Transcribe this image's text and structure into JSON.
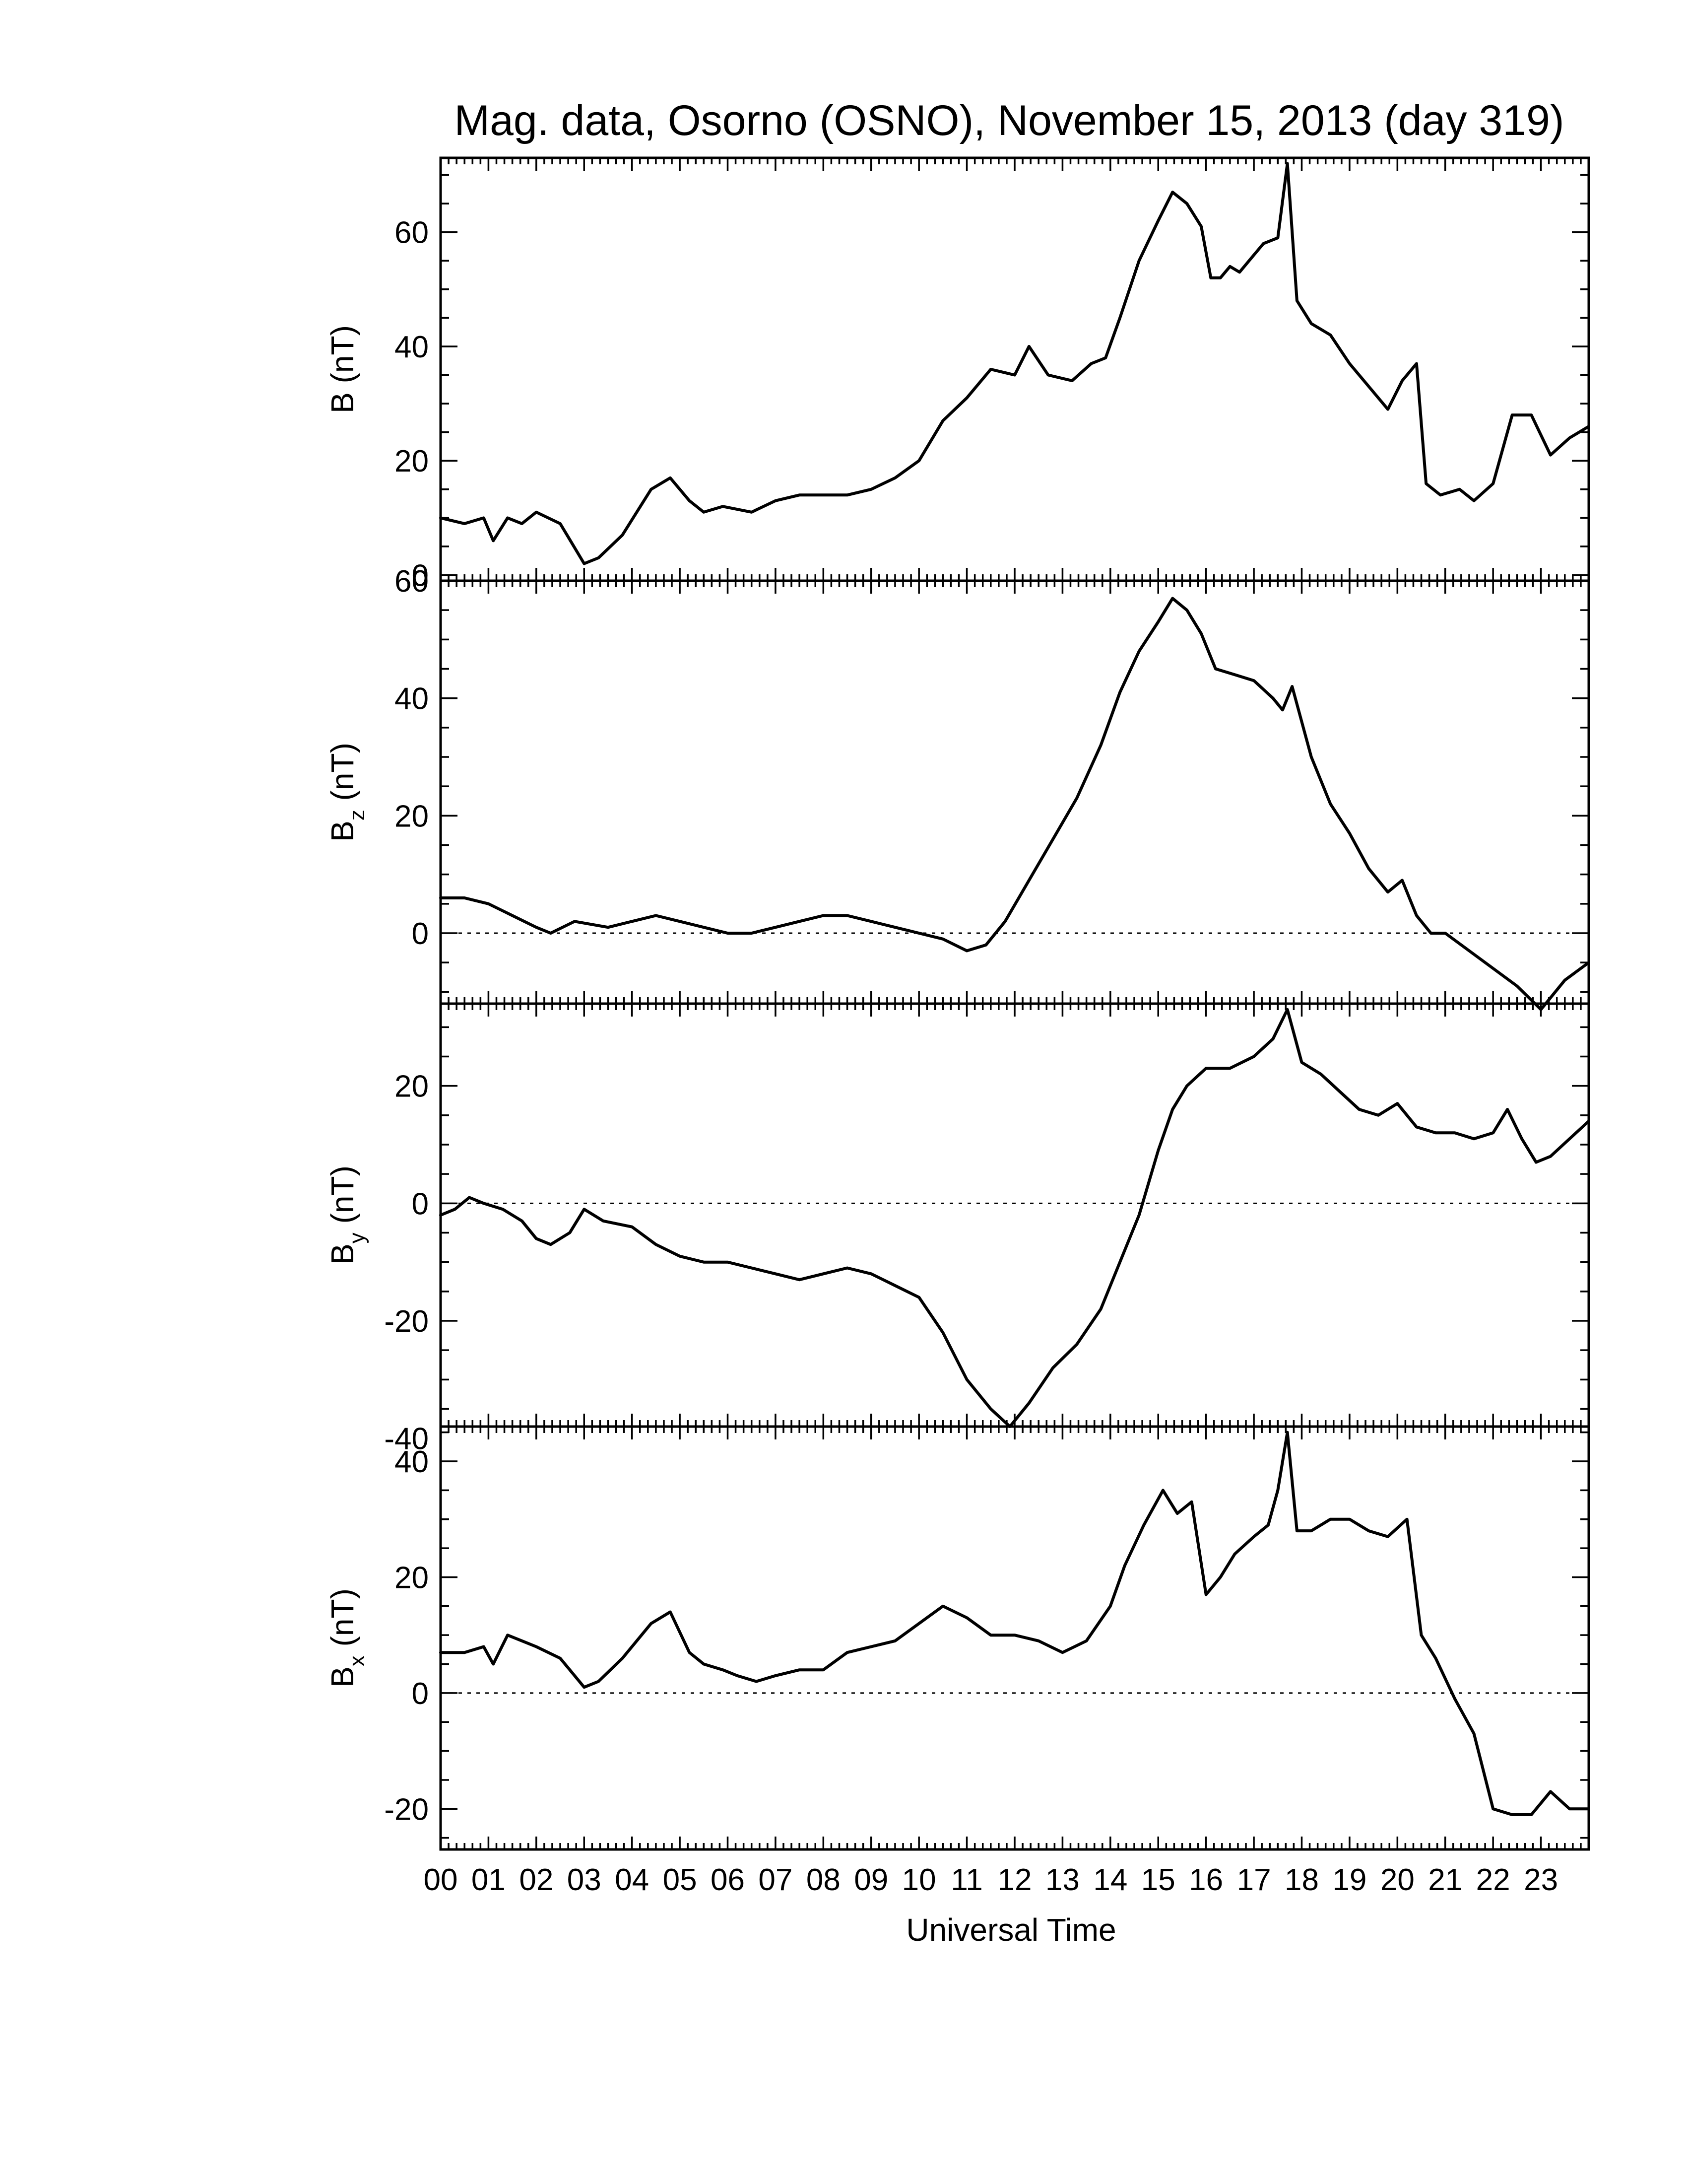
{
  "title": "Mag. data, Osorno (OSNO), November 15, 2013 (day 319)",
  "xlabel": "Universal Time",
  "x_tick_labels": [
    "00",
    "01",
    "02",
    "03",
    "04",
    "05",
    "06",
    "07",
    "08",
    "09",
    "10",
    "11",
    "12",
    "13",
    "14",
    "15",
    "16",
    "17",
    "18",
    "19",
    "20",
    "21",
    "22",
    "23"
  ],
  "chart_data": [
    {
      "type": "line",
      "name": "B",
      "ylabel": "B (nT)",
      "ylabel_main": "B",
      "ylabel_sub": "",
      "ylabel_unit": " (nT)",
      "xlim": [
        0,
        24
      ],
      "ylim": [
        -1,
        73
      ],
      "yticks": [
        0,
        20,
        40,
        60
      ],
      "zero_line": false,
      "x": [
        0,
        0.5,
        0.9,
        1.1,
        1.4,
        1.7,
        2.0,
        2.5,
        3.0,
        3.3,
        3.8,
        4.4,
        4.8,
        5.2,
        5.5,
        5.9,
        6.5,
        7.0,
        7.5,
        8.0,
        8.5,
        9.0,
        9.5,
        10.0,
        10.5,
        11.0,
        11.5,
        12.0,
        12.3,
        12.7,
        13.2,
        13.6,
        13.9,
        14.2,
        14.6,
        15.0,
        15.3,
        15.6,
        15.9,
        16.1,
        16.3,
        16.5,
        16.7,
        17.0,
        17.2,
        17.5,
        17.7,
        17.9,
        18.2,
        18.6,
        19.0,
        19.4,
        19.8,
        20.1,
        20.4,
        20.6,
        20.9,
        21.3,
        21.6,
        22.0,
        22.4,
        22.8,
        23.2,
        23.6,
        24.0
      ],
      "values": [
        10,
        9,
        10,
        6,
        10,
        9,
        11,
        9,
        2,
        3,
        7,
        15,
        17,
        13,
        11,
        12,
        11,
        13,
        14,
        14,
        14,
        15,
        17,
        20,
        27,
        31,
        36,
        35,
        40,
        35,
        34,
        37,
        38,
        45,
        55,
        62,
        67,
        65,
        61,
        52,
        52,
        54,
        53,
        56,
        58,
        59,
        72,
        48,
        44,
        42,
        37,
        33,
        29,
        34,
        37,
        16,
        14,
        15,
        13,
        16,
        28,
        28,
        21,
        24,
        26
      ]
    },
    {
      "type": "line",
      "name": "Bz",
      "ylabel": "Bz (nT)",
      "ylabel_main": "B",
      "ylabel_sub": "z",
      "ylabel_unit": " (nT)",
      "xlim": [
        0,
        24
      ],
      "ylim": [
        -12,
        60
      ],
      "yticks": [
        0,
        20,
        40,
        60
      ],
      "zero_line": true,
      "x": [
        0,
        0.5,
        1.0,
        1.5,
        2.0,
        2.3,
        2.8,
        3.5,
        4.0,
        4.5,
        5.0,
        5.5,
        6.0,
        6.5,
        7.0,
        7.5,
        8.0,
        8.5,
        9.0,
        9.5,
        10.0,
        10.5,
        11.0,
        11.4,
        11.8,
        12.3,
        12.8,
        13.3,
        13.8,
        14.2,
        14.6,
        15.0,
        15.3,
        15.6,
        15.9,
        16.2,
        16.6,
        17.0,
        17.4,
        17.6,
        17.8,
        18.2,
        18.6,
        19.0,
        19.4,
        19.8,
        20.1,
        20.4,
        20.7,
        21.0,
        21.5,
        22.0,
        22.5,
        23.0,
        23.5,
        24.0
      ],
      "values": [
        6,
        6,
        5,
        3,
        1,
        0,
        2,
        1,
        2,
        3,
        2,
        1,
        0,
        0,
        1,
        2,
        3,
        3,
        2,
        1,
        0,
        -1,
        -3,
        -2,
        2,
        9,
        16,
        23,
        32,
        41,
        48,
        53,
        57,
        55,
        51,
        45,
        44,
        43,
        40,
        38,
        42,
        30,
        22,
        17,
        11,
        7,
        9,
        3,
        0,
        0,
        -3,
        -6,
        -9,
        -13,
        -8,
        -5
      ]
    },
    {
      "type": "line",
      "name": "By",
      "ylabel": "By (nT)",
      "ylabel_main": "B",
      "ylabel_sub": "y",
      "ylabel_unit": " (nT)",
      "xlim": [
        0,
        24
      ],
      "ylim": [
        -38,
        34
      ],
      "yticks": [
        -40,
        -20,
        0,
        20
      ],
      "zero_line": true,
      "x": [
        0,
        0.3,
        0.6,
        0.9,
        1.3,
        1.7,
        2.0,
        2.3,
        2.7,
        3.0,
        3.4,
        4.0,
        4.5,
        5.0,
        5.5,
        6.0,
        6.5,
        7.0,
        7.5,
        8.0,
        8.5,
        9.0,
        9.5,
        10.0,
        10.5,
        11.0,
        11.5,
        11.9,
        12.3,
        12.8,
        13.3,
        13.8,
        14.2,
        14.6,
        15.0,
        15.3,
        15.6,
        16.0,
        16.5,
        17.0,
        17.4,
        17.7,
        18.0,
        18.4,
        18.8,
        19.2,
        19.6,
        20.0,
        20.4,
        20.8,
        21.2,
        21.6,
        22.0,
        22.3,
        22.6,
        22.9,
        23.2,
        23.6,
        24.0
      ],
      "values": [
        -2,
        -1,
        1,
        0,
        -1,
        -3,
        -6,
        -7,
        -5,
        -1,
        -3,
        -4,
        -7,
        -9,
        -10,
        -10,
        -11,
        -12,
        -13,
        -12,
        -11,
        -12,
        -14,
        -16,
        -22,
        -30,
        -35,
        -38,
        -34,
        -28,
        -24,
        -18,
        -10,
        -2,
        9,
        16,
        20,
        23,
        23,
        25,
        28,
        33,
        24,
        22,
        19,
        16,
        15,
        17,
        13,
        12,
        12,
        11,
        12,
        16,
        11,
        7,
        8,
        11,
        14
      ]
    },
    {
      "type": "line",
      "name": "Bx",
      "ylabel": "Bx (nT)",
      "ylabel_main": "B",
      "ylabel_sub": "x",
      "ylabel_unit": " (nT)",
      "xlim": [
        0,
        24
      ],
      "ylim": [
        -27,
        46
      ],
      "yticks": [
        -20,
        0,
        20,
        40
      ],
      "zero_line": true,
      "x": [
        0,
        0.5,
        0.9,
        1.1,
        1.4,
        1.7,
        2.0,
        2.5,
        3.0,
        3.3,
        3.8,
        4.4,
        4.8,
        5.2,
        5.5,
        5.9,
        6.2,
        6.6,
        7.0,
        7.5,
        8.0,
        8.5,
        9.0,
        9.5,
        10.0,
        10.5,
        11.0,
        11.5,
        12.0,
        12.5,
        13.0,
        13.5,
        14.0,
        14.3,
        14.7,
        15.1,
        15.4,
        15.7,
        16.0,
        16.3,
        16.6,
        17.0,
        17.3,
        17.5,
        17.7,
        17.9,
        18.2,
        18.6,
        19.0,
        19.4,
        19.8,
        20.2,
        20.5,
        20.8,
        21.2,
        21.6,
        22.0,
        22.4,
        22.8,
        23.2,
        23.6,
        24.0
      ],
      "values": [
        7,
        7,
        8,
        5,
        10,
        9,
        8,
        6,
        1,
        2,
        6,
        12,
        14,
        7,
        5,
        4,
        3,
        2,
        3,
        4,
        4,
        7,
        8,
        9,
        12,
        15,
        13,
        10,
        10,
        9,
        7,
        9,
        15,
        22,
        29,
        35,
        31,
        33,
        17,
        20,
        24,
        27,
        29,
        35,
        45,
        28,
        28,
        30,
        30,
        28,
        27,
        30,
        10,
        6,
        -1,
        -7,
        -20,
        -21,
        -21,
        -17,
        -20,
        -20
      ]
    }
  ]
}
